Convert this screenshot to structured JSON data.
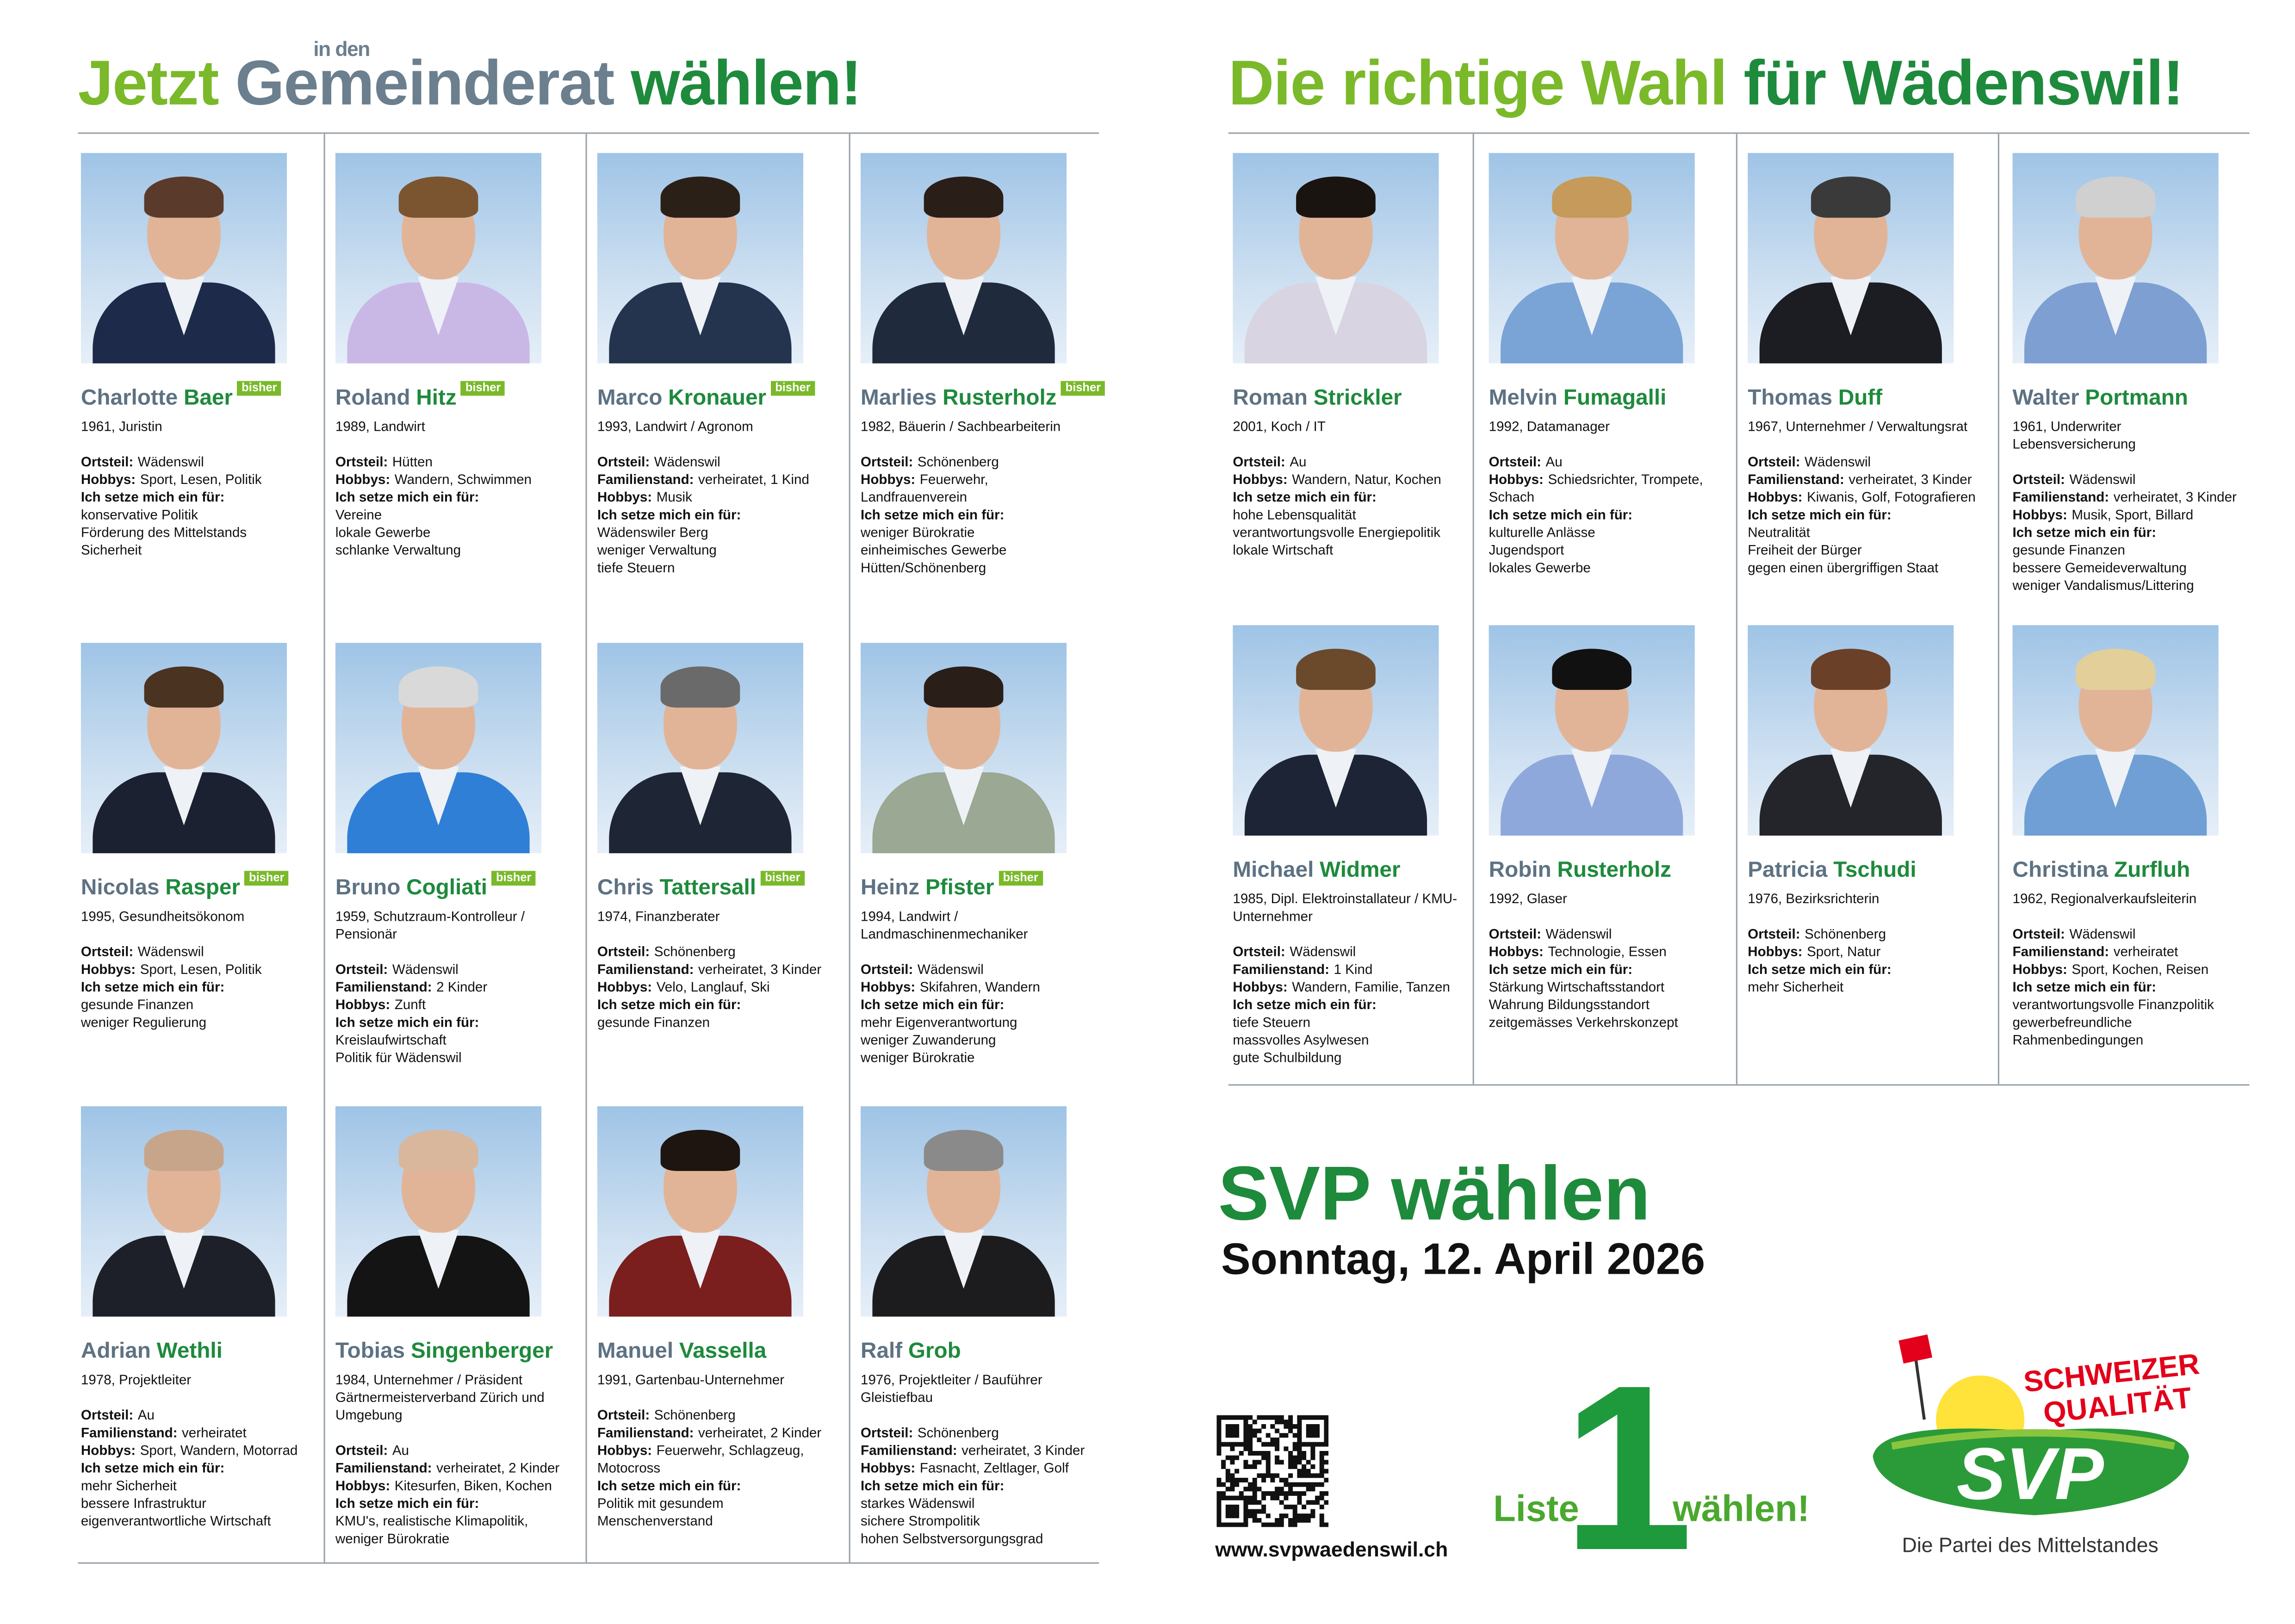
{
  "left_title": {
    "part1": "Jetzt",
    "small": "in den",
    "part2": "Gemeinderat",
    "part3": "wählen!"
  },
  "right_title": {
    "part1": "Die richtige Wahl",
    "part2": "für Wädenswil!"
  },
  "candidates": [
    {
      "first": "Charlotte",
      "last": "Baer",
      "badge": "bisher",
      "info": "1961, Juristin",
      "details": [
        {
          "label": "Ortsteil:",
          "text": "Wädenswil"
        },
        {
          "label": "Hobbys:",
          "text": "Sport, Lesen, Politik"
        }
      ],
      "focus": {
        "label": "Ich setze mich ein für:",
        "items": [
          "konservative Politik",
          "Förderung des Mittelstands",
          "Sicherheit"
        ]
      }
    },
    {
      "first": "Roland",
      "last": "Hitz",
      "badge": "bisher",
      "info": "1989, Landwirt",
      "details": [
        {
          "label": "Ortsteil:",
          "text": "Hütten"
        },
        {
          "label": "Hobbys:",
          "text": "Wandern, Schwimmen"
        }
      ],
      "focus": {
        "label": "Ich setze mich ein für:",
        "items": [
          "Vereine",
          "lokale Gewerbe",
          "schlanke Verwaltung"
        ]
      }
    },
    {
      "first": "Marco",
      "last": "Kronauer",
      "badge": "bisher",
      "info": "1993, Landwirt / Agronom",
      "details": [
        {
          "label": "Ortsteil:",
          "text": "Wädenswil"
        },
        {
          "label": "Familienstand:",
          "text": "verheiratet, 1 Kind"
        },
        {
          "label": "Hobbys:",
          "text": "Musik"
        }
      ],
      "focus": {
        "label": "Ich setze mich ein für:",
        "items": [
          "Wädenswiler Berg",
          "weniger Verwaltung",
          "tiefe Steuern"
        ]
      }
    },
    {
      "first": "Marlies",
      "last": "Rusterholz",
      "badge": "bisher",
      "info": "1982, Bäuerin / Sachbearbeiterin",
      "details": [
        {
          "label": "Ortsteil:",
          "text": "Schönenberg"
        },
        {
          "label": "Hobbys:",
          "text": "Feuerwehr, Landfrauenverein"
        }
      ],
      "focus": {
        "label": "Ich setze mich ein für:",
        "items": [
          "weniger Bürokratie",
          "einheimisches Gewerbe",
          "Hütten/Schönenberg"
        ]
      }
    },
    {
      "first": "Nicolas",
      "last": "Rasper",
      "badge": "bisher",
      "info": "1995, Gesundheitsökonom",
      "details": [
        {
          "label": "Ortsteil:",
          "text": "Wädenswil"
        },
        {
          "label": "Hobbys:",
          "text": "Sport, Lesen, Politik"
        }
      ],
      "focus": {
        "label": "Ich setze mich ein für:",
        "items": [
          "gesunde Finanzen",
          "weniger Regulierung"
        ]
      }
    },
    {
      "first": "Bruno",
      "last": "Cogliati",
      "badge": "bisher",
      "info": "1959, Schutzraum-Kontrolleur / Pensionär",
      "details": [
        {
          "label": "Ortsteil:",
          "text": "Wädenswil"
        },
        {
          "label": "Familienstand:",
          "text": "2 Kinder"
        },
        {
          "label": "Hobbys:",
          "text": "Zunft"
        }
      ],
      "focus": {
        "label": "Ich setze mich ein für:",
        "items": [
          "Kreislaufwirtschaft",
          "Politik für Wädenswil"
        ]
      }
    },
    {
      "first": "Chris",
      "last": "Tattersall",
      "badge": "bisher",
      "info": "1974, Finanzberater",
      "details": [
        {
          "label": "Ortsteil:",
          "text": "Schönenberg"
        },
        {
          "label": "Familienstand:",
          "text": "verheiratet, 3 Kinder"
        },
        {
          "label": "Hobbys:",
          "text": "Velo, Langlauf, Ski"
        }
      ],
      "focus": {
        "label": "Ich setze mich ein für:",
        "items": [
          "gesunde Finanzen"
        ]
      }
    },
    {
      "first": "Heinz",
      "last": "Pfister",
      "badge": "bisher",
      "info": "1994, Landwirt / Landmaschinenmechaniker",
      "details": [
        {
          "label": "Ortsteil:",
          "text": "Wädenswil"
        },
        {
          "label": "Hobbys:",
          "text": "Skifahren, Wandern"
        }
      ],
      "focus": {
        "label": "Ich setze mich ein für:",
        "items": [
          "mehr Eigenverantwortung",
          "weniger Zuwanderung",
          "weniger Bürokratie"
        ]
      }
    },
    {
      "first": "Adrian",
      "last": "Wethli",
      "info": "1978, Projektleiter",
      "details": [
        {
          "label": "Ortsteil:",
          "text": "Au"
        },
        {
          "label": "Familienstand:",
          "text": "verheiratet"
        },
        {
          "label": "Hobbys:",
          "text": "Sport, Wandern, Motorrad"
        }
      ],
      "focus": {
        "label": "Ich setze mich ein für:",
        "items": [
          "mehr Sicherheit",
          "bessere Infrastruktur",
          "eigenverantwortliche Wirtschaft"
        ]
      }
    },
    {
      "first": "Tobias",
      "last": "Singenberger",
      "info": "1984, Unternehmer / Präsident Gärtnermeisterverband Zürich und Umgebung",
      "details": [
        {
          "label": "Ortsteil:",
          "text": "Au"
        },
        {
          "label": "Familienstand:",
          "text": "verheiratet, 2 Kinder"
        },
        {
          "label": "Hobbys:",
          "text": "Kitesurfen, Biken, Kochen"
        }
      ],
      "focus": {
        "label": "Ich setze mich ein für:",
        "items": [
          "KMU's, realistische Klimapolitik, weniger Bürokratie"
        ]
      }
    },
    {
      "first": "Manuel",
      "last": "Vassella",
      "info": "1991, Gartenbau-Unternehmer",
      "details": [
        {
          "label": "Ortsteil:",
          "text": "Schönenberg"
        },
        {
          "label": "Familienstand:",
          "text": "verheiratet, 2 Kinder"
        },
        {
          "label": "Hobbys:",
          "text": "Feuerwehr, Schlagzeug, Motocross"
        }
      ],
      "focus": {
        "label": "Ich setze mich ein für:",
        "items": [
          "Politik mit gesundem Menschenverstand"
        ]
      }
    },
    {
      "first": "Ralf",
      "last": "Grob",
      "info": "1976, Projektleiter / Bauführer Gleistiefbau",
      "details": [
        {
          "label": "Ortsteil:",
          "text": "Schönenberg"
        },
        {
          "label": "Familienstand:",
          "text": "verheiratet, 3 Kinder"
        },
        {
          "label": "Hobbys:",
          "text": "Fasnacht, Zeltlager, Golf"
        }
      ],
      "focus": {
        "label": "Ich setze mich ein für:",
        "items": [
          "starkes Wädenswil",
          "sichere Strompolitik",
          "hohen Selbstversorgungsgrad"
        ]
      }
    },
    {
      "first": "Roman",
      "last": "Strickler",
      "info": "2001, Koch / IT",
      "details": [
        {
          "label": "Ortsteil:",
          "text": "Au"
        },
        {
          "label": "Hobbys:",
          "text": "Wandern, Natur, Kochen"
        }
      ],
      "focus": {
        "label": "Ich setze mich ein für:",
        "items": [
          "hohe Lebensqualität",
          "verantwortungsvolle Energiepolitik",
          "lokale Wirtschaft"
        ]
      }
    },
    {
      "first": "Melvin",
      "last": "Fumagalli",
      "info": "1992, Datamanager",
      "details": [
        {
          "label": "Ortsteil:",
          "text": "Au"
        },
        {
          "label": "Hobbys:",
          "text": "Schiedsrichter, Trompete, Schach"
        }
      ],
      "focus": {
        "label": "Ich setze mich ein für:",
        "items": [
          "kulturelle Anlässe",
          "Jugendsport",
          "lokales Gewerbe"
        ]
      }
    },
    {
      "first": "Thomas",
      "last": "Duff",
      "info": "1967, Unternehmer / Verwaltungsrat",
      "details": [
        {
          "label": "Ortsteil:",
          "text": "Wädenswil"
        },
        {
          "label": "Familienstand:",
          "text": "verheiratet, 3 Kinder"
        },
        {
          "label": "Hobbys:",
          "text": "Kiwanis, Golf, Fotografieren"
        }
      ],
      "focus": {
        "label": "Ich setze mich ein für:",
        "items": [
          "Neutralität",
          "Freiheit der Bürger",
          "gegen einen übergriffigen Staat"
        ]
      }
    },
    {
      "first": "Walter",
      "last": "Portmann",
      "info": "1961, Underwriter Lebensversicherung",
      "details": [
        {
          "label": "Ortsteil:",
          "text": "Wädenswil"
        },
        {
          "label": "Familienstand:",
          "text": "verheiratet, 3 Kinder"
        },
        {
          "label": "Hobbys:",
          "text": "Musik, Sport, Billard"
        }
      ],
      "focus": {
        "label": "Ich setze mich ein für:",
        "items": [
          "gesunde Finanzen",
          "bessere Gemeideverwaltung",
          "weniger Vandalismus/Littering"
        ]
      }
    },
    {
      "first": "Michael",
      "last": "Widmer",
      "info": "1985, Dipl. Elektroinstallateur / KMU-Unternehmer",
      "details": [
        {
          "label": "Ortsteil:",
          "text": "Wädenswil"
        },
        {
          "label": "Familienstand:",
          "text": "1 Kind"
        },
        {
          "label": "Hobbys:",
          "text": "Wandern, Familie, Tanzen"
        }
      ],
      "focus": {
        "label": "Ich setze mich ein für:",
        "items": [
          "tiefe Steuern",
          "massvolles Asylwesen",
          "gute Schulbildung"
        ]
      }
    },
    {
      "first": "Robin",
      "last": "Rusterholz",
      "info": "1992, Glaser",
      "details": [
        {
          "label": "Ortsteil:",
          "text": "Wädenswil"
        },
        {
          "label": "Hobbys:",
          "text": "Technologie, Essen"
        }
      ],
      "focus": {
        "label": "Ich setze mich ein für:",
        "items": [
          "Stärkung Wirtschaftsstandort",
          "Wahrung Bildungsstandort",
          "zeitgemässes Verkehrskonzept"
        ]
      }
    },
    {
      "first": "Patricia",
      "last": "Tschudi",
      "info": "1976, Bezirksrichterin",
      "details": [
        {
          "label": "Ortsteil:",
          "text": "Schönenberg"
        },
        {
          "label": "Hobbys:",
          "text": "Sport, Natur"
        }
      ],
      "focus": {
        "label": "Ich setze mich ein für:",
        "items": [
          "mehr Sicherheit"
        ]
      }
    },
    {
      "first": "Christina",
      "last": "Zurfluh",
      "info": "1962, Regionalverkaufsleiterin",
      "details": [
        {
          "label": "Ortsteil:",
          "text": "Wädenswil"
        },
        {
          "label": "Familienstand:",
          "text": "verheiratet"
        },
        {
          "label": "Hobbys:",
          "text": "Sport, Kochen, Reisen"
        }
      ],
      "focus": {
        "label": "Ich setze mich ein für:",
        "items": [
          "verantwortungsvolle Finanzpolitik",
          "gewerbefreundliche Rahmenbedingungen"
        ]
      }
    }
  ],
  "cta": {
    "headline": "SVP wählen",
    "date": "Sonntag, 12. April 2026"
  },
  "website": "www.svpwaedenswil.ch",
  "liste": {
    "before": "Liste",
    "number": "1",
    "after": "wählen!"
  },
  "logo": {
    "line1": "SCHWEIZER",
    "line2": "QUALITÄT",
    "brand": "SVP",
    "tagline": "Die Partei des Mittelstandes"
  }
}
